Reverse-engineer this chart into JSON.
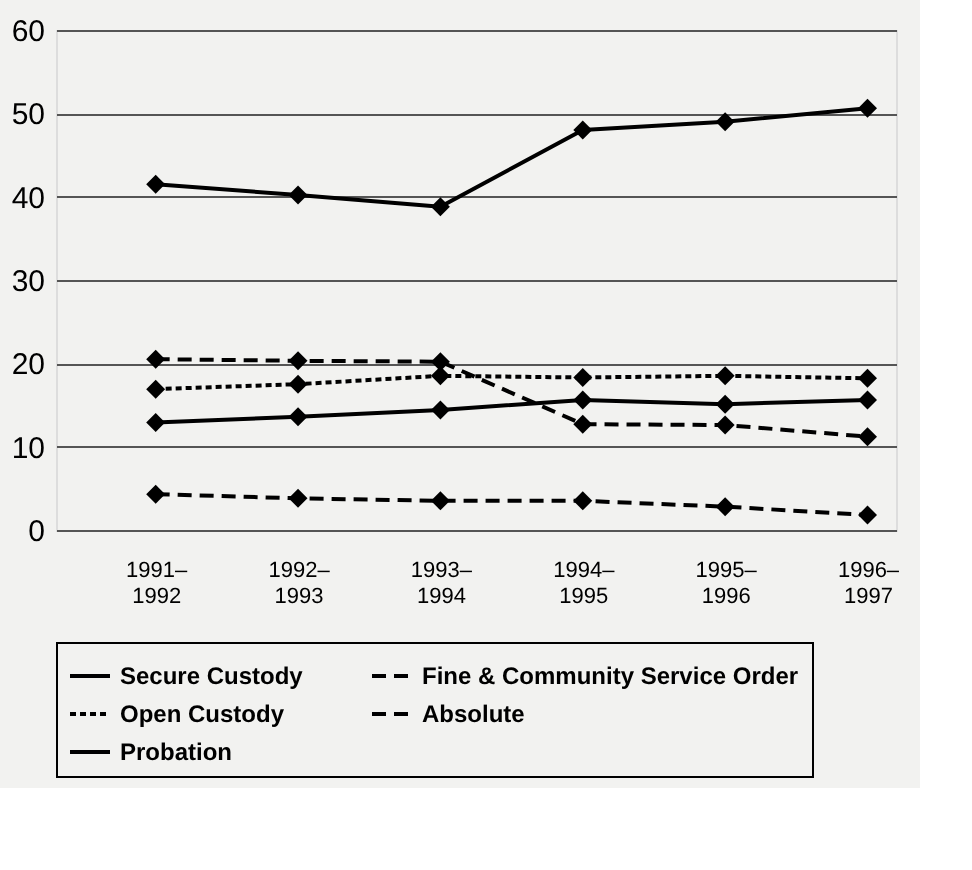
{
  "chart_data": {
    "type": "line",
    "categories": [
      "1991–1992",
      "1992–1993",
      "1993–1994",
      "1994–1995",
      "1995–1996",
      "1996–1997"
    ],
    "series": [
      {
        "name": "Secure Custody",
        "color": "#000000",
        "line_style": "solid",
        "values": [
          41.5,
          40.2,
          38.8,
          48,
          49,
          50.6
        ]
      },
      {
        "name": "Open Custody",
        "color": "#000000",
        "line_style": "dotted",
        "values": [
          16.9,
          17.5,
          18.5,
          18.3,
          18.5,
          18.2
        ]
      },
      {
        "name": "Probation",
        "color": "#000000",
        "line_style": "solid",
        "values": [
          12.9,
          13.6,
          14.4,
          15.6,
          15.1,
          15.6
        ]
      },
      {
        "name": "Fine & Community Service Order",
        "color": "#000000",
        "line_style": "dashed",
        "values": [
          20.5,
          20.3,
          20.2,
          12.7,
          12.6,
          11.2
        ]
      },
      {
        "name": "Absolute",
        "color": "#000000",
        "line_style": "dashed",
        "values": [
          4.3,
          3.8,
          3.5,
          3.5,
          2.8,
          1.8
        ]
      }
    ],
    "ylim": [
      0,
      60
    ],
    "yticks": [
      0,
      10,
      20,
      30,
      40,
      50,
      60
    ],
    "grid": "y",
    "legend": "bottom",
    "marker": "diamond"
  }
}
